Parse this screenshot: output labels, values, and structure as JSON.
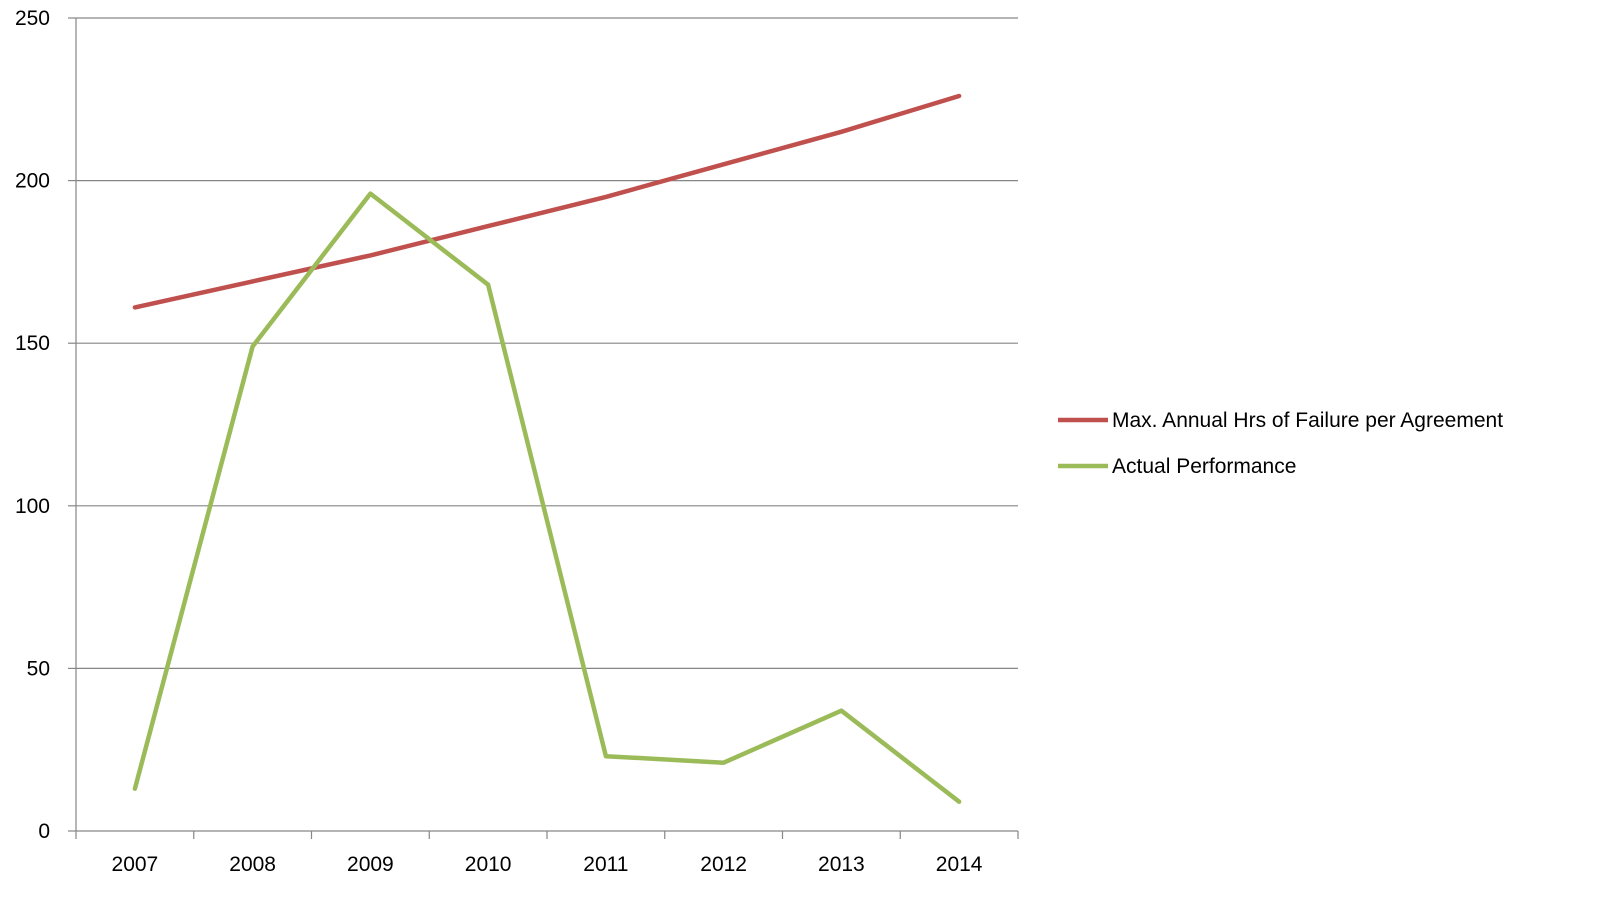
{
  "chart_data": {
    "type": "line",
    "title": "",
    "xlabel": "",
    "ylabel": "",
    "categories": [
      "2007",
      "2008",
      "2009",
      "2010",
      "2011",
      "2012",
      "2013",
      "2014"
    ],
    "ylim": [
      0,
      250
    ],
    "yticks": [
      0,
      50,
      100,
      150,
      200,
      250
    ],
    "grid": true,
    "legend_position": "right",
    "series": [
      {
        "name": "Max. Annual Hrs of Failure per Agreement",
        "color": "#c0504d",
        "values": [
          161,
          169,
          177,
          186,
          195,
          205,
          215,
          226
        ]
      },
      {
        "name": "Actual Performance",
        "color": "#9bbb59",
        "values": [
          13,
          149,
          196,
          168,
          23,
          21,
          37,
          9
        ]
      }
    ]
  }
}
